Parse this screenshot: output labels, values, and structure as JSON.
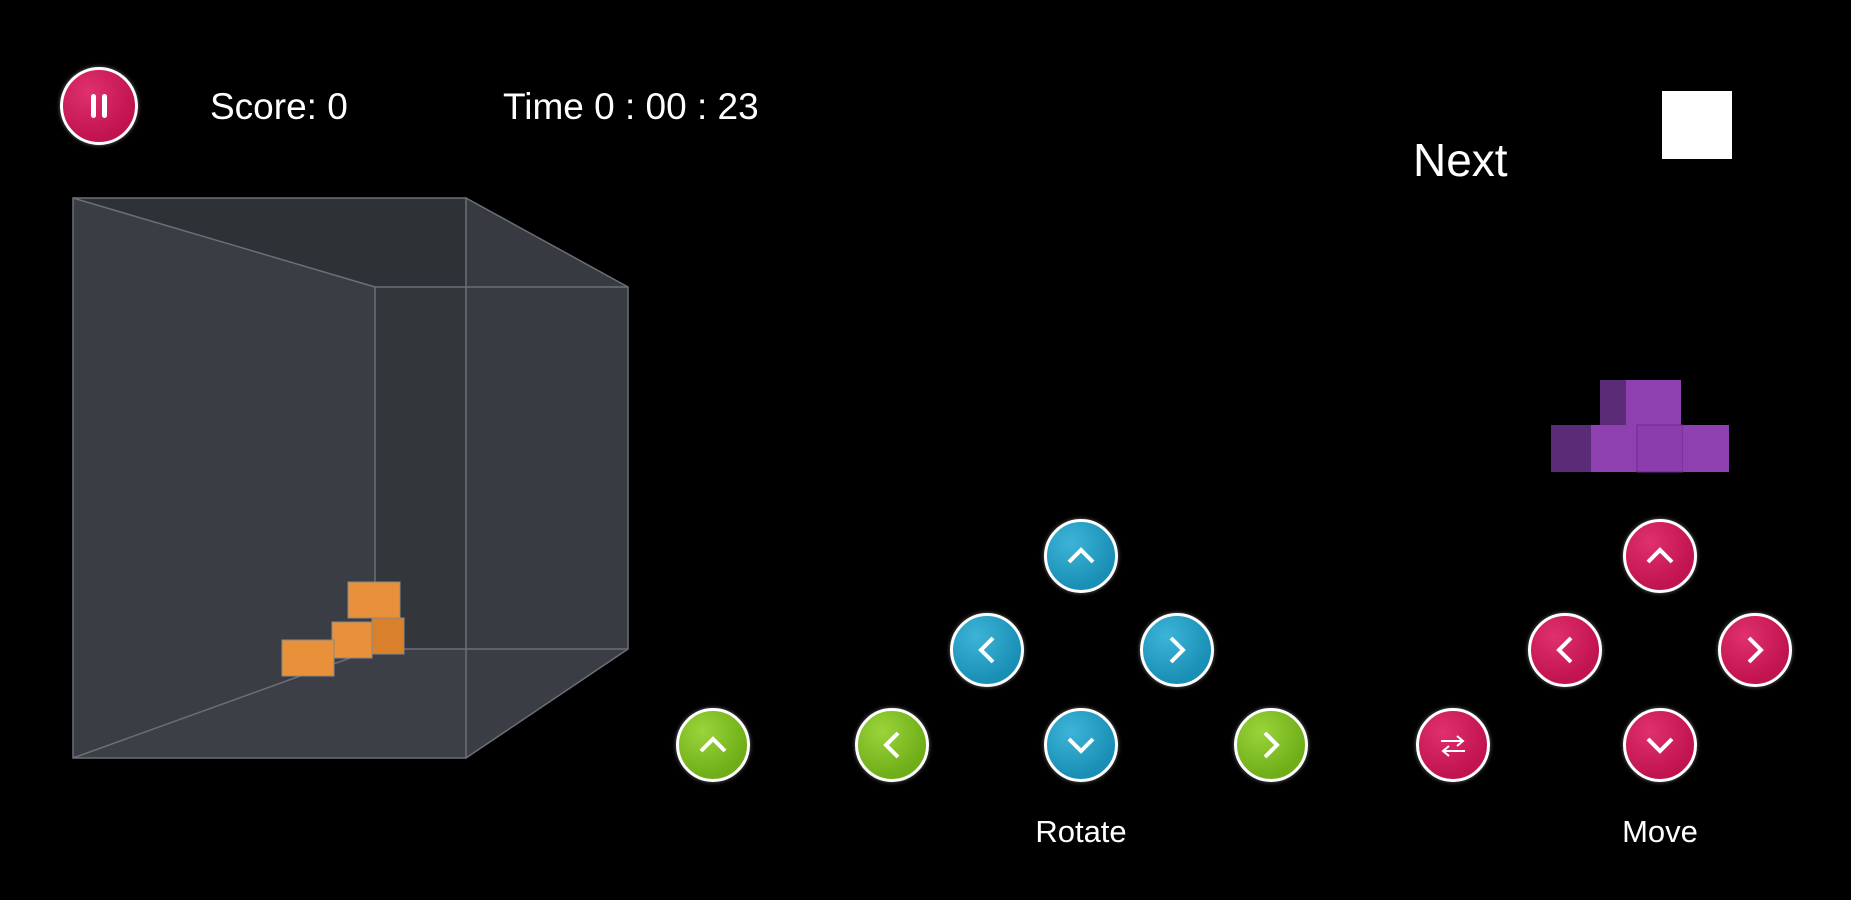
{
  "hud": {
    "score_label": "Score: 0",
    "time_label": "Time 0 : 00 : 23",
    "pause_icon": "pause-icon"
  },
  "next": {
    "label": "Next",
    "piece_color": "#8e3fb0"
  },
  "board": {
    "block_color": "#e8903a"
  },
  "controls": {
    "rotate_label": "Rotate",
    "move_label": "Move",
    "colors": {
      "rotate": "#1f9bc0",
      "extra": "#7cb820",
      "move": "#c4145a"
    }
  }
}
